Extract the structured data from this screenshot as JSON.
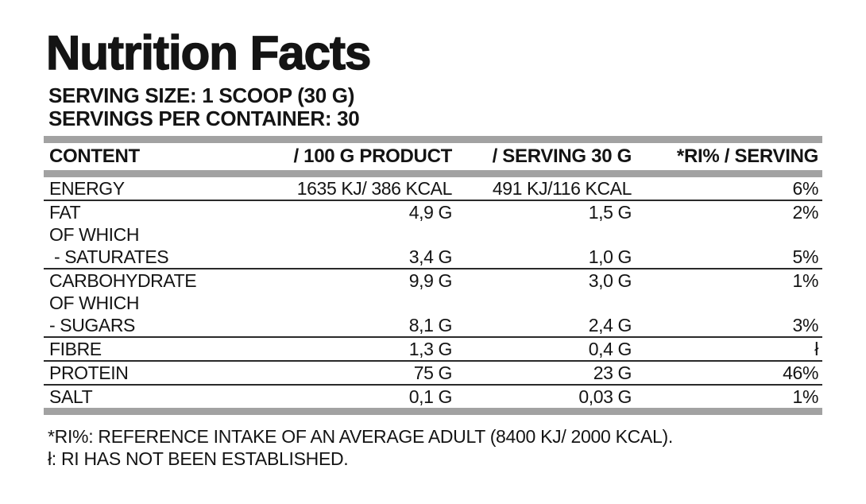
{
  "title": "Nutrition Facts",
  "serving_size": "SERVING SIZE: 1 SCOOP (30 G)",
  "servings_per_container": "SERVINGS PER CONTAINER: 30",
  "table": {
    "headers": [
      "CONTENT",
      "/ 100 G PRODUCT",
      "/ SERVING 30 G",
      "*RI% / SERVING"
    ],
    "rows": [
      {
        "content": "ENERGY",
        "per_100g": "1635 KJ/ 386 KCAL",
        "per_serving": "491 KJ/116 KCAL",
        "ri_percent": "6%"
      },
      {
        "content": "FAT",
        "per_100g": "4,9 G",
        "per_serving": "1,5 G",
        "ri_percent": "2%"
      },
      {
        "content": "OF WHICH",
        "per_100g": "",
        "per_serving": "",
        "ri_percent": ""
      },
      {
        "content": " - SATURATES",
        "per_100g": "3,4 G",
        "per_serving": "1,0 G",
        "ri_percent": "5%"
      },
      {
        "content": "CARBOHYDRATE",
        "per_100g": "9,9 G",
        "per_serving": "3,0 G",
        "ri_percent": "1%"
      },
      {
        "content": "OF WHICH",
        "per_100g": "",
        "per_serving": "",
        "ri_percent": ""
      },
      {
        "content": "- SUGARS",
        "per_100g": "8,1 G",
        "per_serving": "2,4 G",
        "ri_percent": "3%"
      },
      {
        "content": "FIBRE",
        "per_100g": "1,3 G",
        "per_serving": "0,4 G",
        "ri_percent": "ł"
      },
      {
        "content": "PROTEIN",
        "per_100g": "75 G",
        "per_serving": "23 G",
        "ri_percent": "46%"
      },
      {
        "content": "SALT",
        "per_100g": "0,1 G",
        "per_serving": "0,03 G",
        "ri_percent": "1%"
      }
    ]
  },
  "footnotes": [
    "*RI%: REFERENCE INTAKE OF AN AVERAGE ADULT (8400 KJ/ 2000 KCAL).",
    "ł: RI HAS NOT BEEN ESTABLISHED."
  ],
  "colors": {
    "background": "#ffffff",
    "text": "#141414",
    "bar_gray": "#a2a2a2",
    "divider_dark": "#2a2a2a"
  }
}
